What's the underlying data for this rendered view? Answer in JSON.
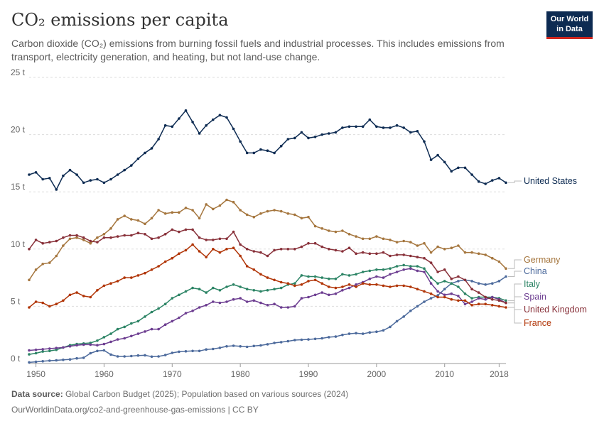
{
  "header": {
    "title": "CO₂ emissions per capita",
    "subtitle": "Carbon dioxide (CO₂) emissions from burning fossil fuels and industrial processes. This includes emissions from transport, electricity generation, and heating, but not land-use change."
  },
  "logo": {
    "line1": "Our World",
    "line2": "in Data"
  },
  "footer": {
    "source_label": "Data source:",
    "source_text": "Global Carbon Budget (2025); Population based on various sources (2024)",
    "url": "OurWorldinData.org/co2-and-greenhouse-gas-emissions | CC BY"
  },
  "chart_data": {
    "type": "line",
    "xlim": [
      1949,
      2019
    ],
    "ylim": [
      0,
      25
    ],
    "y_ticks": [
      0,
      5,
      10,
      15,
      20,
      25
    ],
    "y_tick_labels": [
      "0 t",
      "5 t",
      "10 t",
      "15 t",
      "20 t",
      "25 t"
    ],
    "x_ticks": [
      1950,
      1960,
      1970,
      1980,
      1990,
      2000,
      2010,
      2018
    ],
    "x_tick_labels": [
      "1950",
      "1960",
      "1970",
      "1980",
      "1990",
      "2000",
      "2010",
      "2018"
    ],
    "grid": "horizontal dashed",
    "legend": "right, labels at line ends",
    "x": [
      1949,
      1950,
      1951,
      1952,
      1953,
      1954,
      1955,
      1956,
      1957,
      1958,
      1959,
      1960,
      1961,
      1962,
      1963,
      1964,
      1965,
      1966,
      1967,
      1968,
      1969,
      1970,
      1971,
      1972,
      1973,
      1974,
      1975,
      1976,
      1977,
      1978,
      1979,
      1980,
      1981,
      1982,
      1983,
      1984,
      1985,
      1986,
      1987,
      1988,
      1989,
      1990,
      1991,
      1992,
      1993,
      1994,
      1995,
      1996,
      1997,
      1998,
      1999,
      2000,
      2001,
      2002,
      2003,
      2004,
      2005,
      2006,
      2007,
      2008,
      2009,
      2010,
      2011,
      2012,
      2013,
      2014,
      2015,
      2016,
      2017,
      2018,
      2019
    ],
    "series": [
      {
        "name": "United States",
        "color": "#0d2b52",
        "values": [
          16.5,
          16.7,
          16.1,
          16.2,
          15.2,
          16.4,
          16.9,
          16.5,
          15.8,
          16.0,
          16.1,
          15.8,
          16.1,
          16.5,
          16.9,
          17.3,
          17.9,
          18.4,
          18.8,
          19.6,
          20.8,
          20.7,
          21.4,
          22.1,
          21.1,
          20.1,
          20.8,
          21.3,
          21.7,
          21.5,
          20.5,
          19.4,
          18.4,
          18.4,
          18.7,
          18.6,
          18.4,
          19.0,
          19.6,
          19.7,
          20.2,
          19.7,
          19.8,
          20.0,
          20.1,
          20.2,
          20.6,
          20.7,
          20.7,
          20.7,
          21.3,
          20.7,
          20.6,
          20.6,
          20.8,
          20.6,
          20.2,
          20.3,
          19.4,
          17.8,
          18.2,
          17.6,
          16.8,
          17.1,
          17.1,
          16.5,
          15.9,
          15.7,
          16.0,
          16.2,
          15.8
        ]
      },
      {
        "name": "Germany",
        "color": "#a5763e",
        "values": [
          7.3,
          8.2,
          8.7,
          8.8,
          9.4,
          10.3,
          10.9,
          11.0,
          10.8,
          10.5,
          11.0,
          11.3,
          11.8,
          12.6,
          12.9,
          12.6,
          12.5,
          12.2,
          12.7,
          13.4,
          13.1,
          13.2,
          13.2,
          13.6,
          13.4,
          12.7,
          13.9,
          13.5,
          13.8,
          14.3,
          14.1,
          13.4,
          13.0,
          12.8,
          13.1,
          13.3,
          13.4,
          13.3,
          13.1,
          13.0,
          12.7,
          12.8,
          12.0,
          11.8,
          11.6,
          11.5,
          11.6,
          11.3,
          11.1,
          10.9,
          10.9,
          11.1,
          10.9,
          10.8,
          10.6,
          10.7,
          10.6,
          10.3,
          10.5,
          9.7,
          10.2,
          10.0,
          10.1,
          10.3,
          9.7,
          9.7,
          9.6,
          9.5,
          9.2,
          8.9,
          8.3
        ]
      },
      {
        "name": "China",
        "color": "#4c6a9c",
        "values": [
          0.1,
          0.15,
          0.2,
          0.25,
          0.28,
          0.32,
          0.36,
          0.45,
          0.5,
          0.9,
          1.1,
          1.15,
          0.78,
          0.62,
          0.62,
          0.65,
          0.7,
          0.72,
          0.6,
          0.62,
          0.74,
          0.93,
          1.03,
          1.07,
          1.1,
          1.1,
          1.23,
          1.27,
          1.37,
          1.5,
          1.55,
          1.5,
          1.46,
          1.53,
          1.58,
          1.68,
          1.8,
          1.87,
          1.95,
          2.05,
          2.08,
          2.1,
          2.15,
          2.2,
          2.3,
          2.35,
          2.5,
          2.6,
          2.65,
          2.6,
          2.72,
          2.78,
          2.9,
          3.2,
          3.7,
          4.1,
          4.6,
          5.0,
          5.4,
          5.7,
          5.95,
          6.5,
          7.0,
          7.2,
          7.3,
          7.2,
          7.0,
          6.9,
          7.0,
          7.2,
          7.6
        ]
      },
      {
        "name": "Italy",
        "color": "#2c8465",
        "values": [
          0.8,
          0.9,
          1.05,
          1.1,
          1.2,
          1.4,
          1.6,
          1.7,
          1.75,
          1.8,
          2.0,
          2.3,
          2.6,
          3.0,
          3.2,
          3.5,
          3.7,
          4.1,
          4.5,
          4.8,
          5.2,
          5.7,
          6.0,
          6.3,
          6.6,
          6.5,
          6.2,
          6.6,
          6.4,
          6.7,
          6.9,
          6.7,
          6.5,
          6.4,
          6.3,
          6.4,
          6.5,
          6.6,
          6.9,
          7.0,
          7.7,
          7.6,
          7.6,
          7.5,
          7.4,
          7.4,
          7.8,
          7.7,
          7.8,
          8.0,
          8.1,
          8.2,
          8.2,
          8.3,
          8.5,
          8.6,
          8.5,
          8.5,
          8.3,
          7.5,
          7.0,
          7.2,
          7.0,
          6.7,
          6.1,
          5.7,
          5.8,
          5.8,
          5.8,
          5.7,
          5.5
        ]
      },
      {
        "name": "Spain",
        "color": "#6d3e91",
        "values": [
          1.15,
          1.2,
          1.25,
          1.3,
          1.35,
          1.4,
          1.5,
          1.6,
          1.65,
          1.65,
          1.6,
          1.7,
          1.9,
          2.1,
          2.2,
          2.4,
          2.6,
          2.8,
          3.0,
          3.0,
          3.4,
          3.7,
          4.0,
          4.4,
          4.6,
          4.9,
          5.1,
          5.4,
          5.3,
          5.4,
          5.6,
          5.7,
          5.4,
          5.5,
          5.3,
          5.1,
          5.2,
          4.9,
          4.9,
          5.0,
          5.7,
          5.8,
          6.0,
          6.2,
          6.0,
          6.1,
          6.4,
          6.6,
          6.9,
          7.1,
          7.4,
          7.6,
          7.5,
          7.8,
          8.0,
          8.2,
          8.3,
          8.1,
          8.0,
          7.0,
          6.3,
          6.0,
          6.1,
          5.9,
          5.2,
          5.4,
          5.7,
          5.6,
          5.8,
          5.6,
          5.3
        ]
      },
      {
        "name": "United Kingdom",
        "color": "#883039",
        "values": [
          10.0,
          10.8,
          10.5,
          10.6,
          10.7,
          11.0,
          11.2,
          11.2,
          11.0,
          10.7,
          10.6,
          11.0,
          11.0,
          11.1,
          11.2,
          11.2,
          11.4,
          11.3,
          10.9,
          11.0,
          11.3,
          11.7,
          11.5,
          11.7,
          11.7,
          11.0,
          10.8,
          10.8,
          10.9,
          10.9,
          11.5,
          10.4,
          10.0,
          9.8,
          9.7,
          9.4,
          9.9,
          10.0,
          10.0,
          10.0,
          10.2,
          10.5,
          10.5,
          10.2,
          10.0,
          9.9,
          9.8,
          10.1,
          9.6,
          9.7,
          9.6,
          9.6,
          9.7,
          9.4,
          9.5,
          9.5,
          9.4,
          9.3,
          9.2,
          8.8,
          8.0,
          8.2,
          7.4,
          7.6,
          7.3,
          6.5,
          6.2,
          5.8,
          5.6,
          5.5,
          5.3
        ]
      },
      {
        "name": "France",
        "color": "#b13507",
        "values": [
          4.9,
          5.4,
          5.3,
          5.0,
          5.2,
          5.5,
          6.0,
          6.2,
          5.9,
          5.8,
          6.4,
          6.8,
          7.0,
          7.2,
          7.5,
          7.5,
          7.7,
          7.9,
          8.2,
          8.5,
          8.9,
          9.2,
          9.6,
          9.9,
          10.4,
          9.8,
          9.3,
          10.0,
          9.7,
          10.0,
          10.1,
          9.4,
          8.5,
          8.2,
          7.8,
          7.5,
          7.3,
          7.1,
          7.0,
          6.8,
          6.9,
          7.2,
          7.3,
          7.0,
          6.7,
          6.6,
          6.7,
          6.9,
          6.7,
          7.0,
          6.9,
          6.9,
          6.8,
          6.7,
          6.8,
          6.8,
          6.7,
          6.5,
          6.3,
          6.1,
          5.8,
          5.8,
          5.6,
          5.5,
          5.5,
          5.1,
          5.2,
          5.2,
          5.1,
          5.0,
          4.9
        ]
      }
    ]
  }
}
